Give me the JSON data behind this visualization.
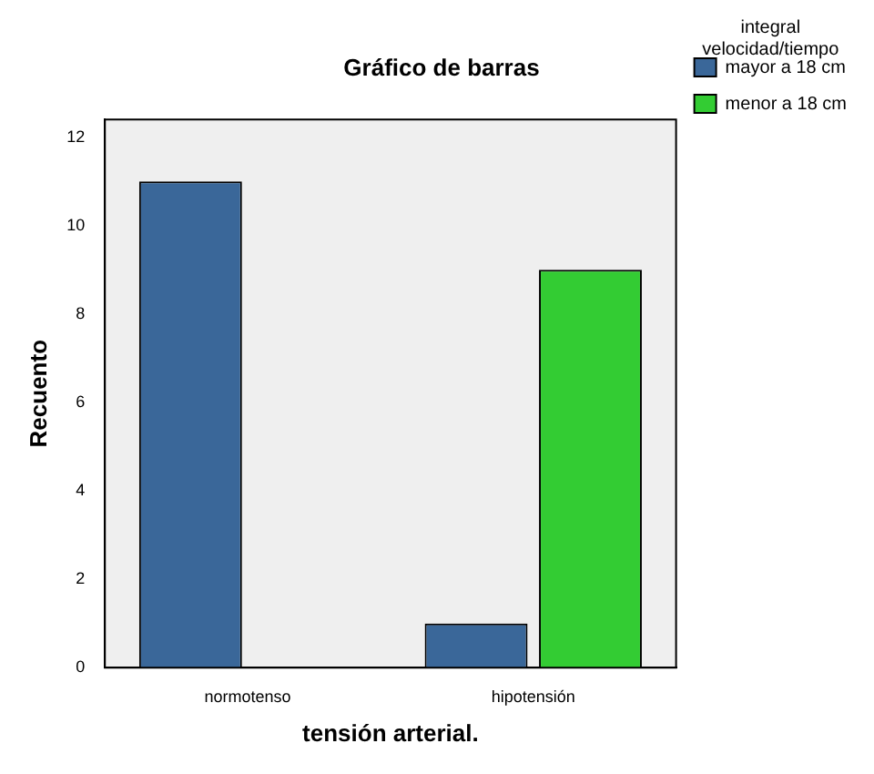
{
  "chart_data": {
    "type": "bar",
    "title": "Gráfico de barras",
    "xlabel": "tensión arterial.",
    "ylabel": "Recuento",
    "legend_title": "integral velocidad/tiempo",
    "categories": [
      "normotenso",
      "hipotensión"
    ],
    "series": [
      {
        "name": "mayor a 18 cm",
        "color": "#3a6799",
        "values": [
          11,
          1
        ]
      },
      {
        "name": "menor a 18 cm",
        "color": "#33cc33",
        "values": [
          0,
          9
        ]
      }
    ],
    "ylim": [
      0,
      12.4
    ],
    "yticks": [
      0,
      2,
      4,
      6,
      8,
      10,
      12
    ],
    "grid": false,
    "legend": "top right"
  }
}
